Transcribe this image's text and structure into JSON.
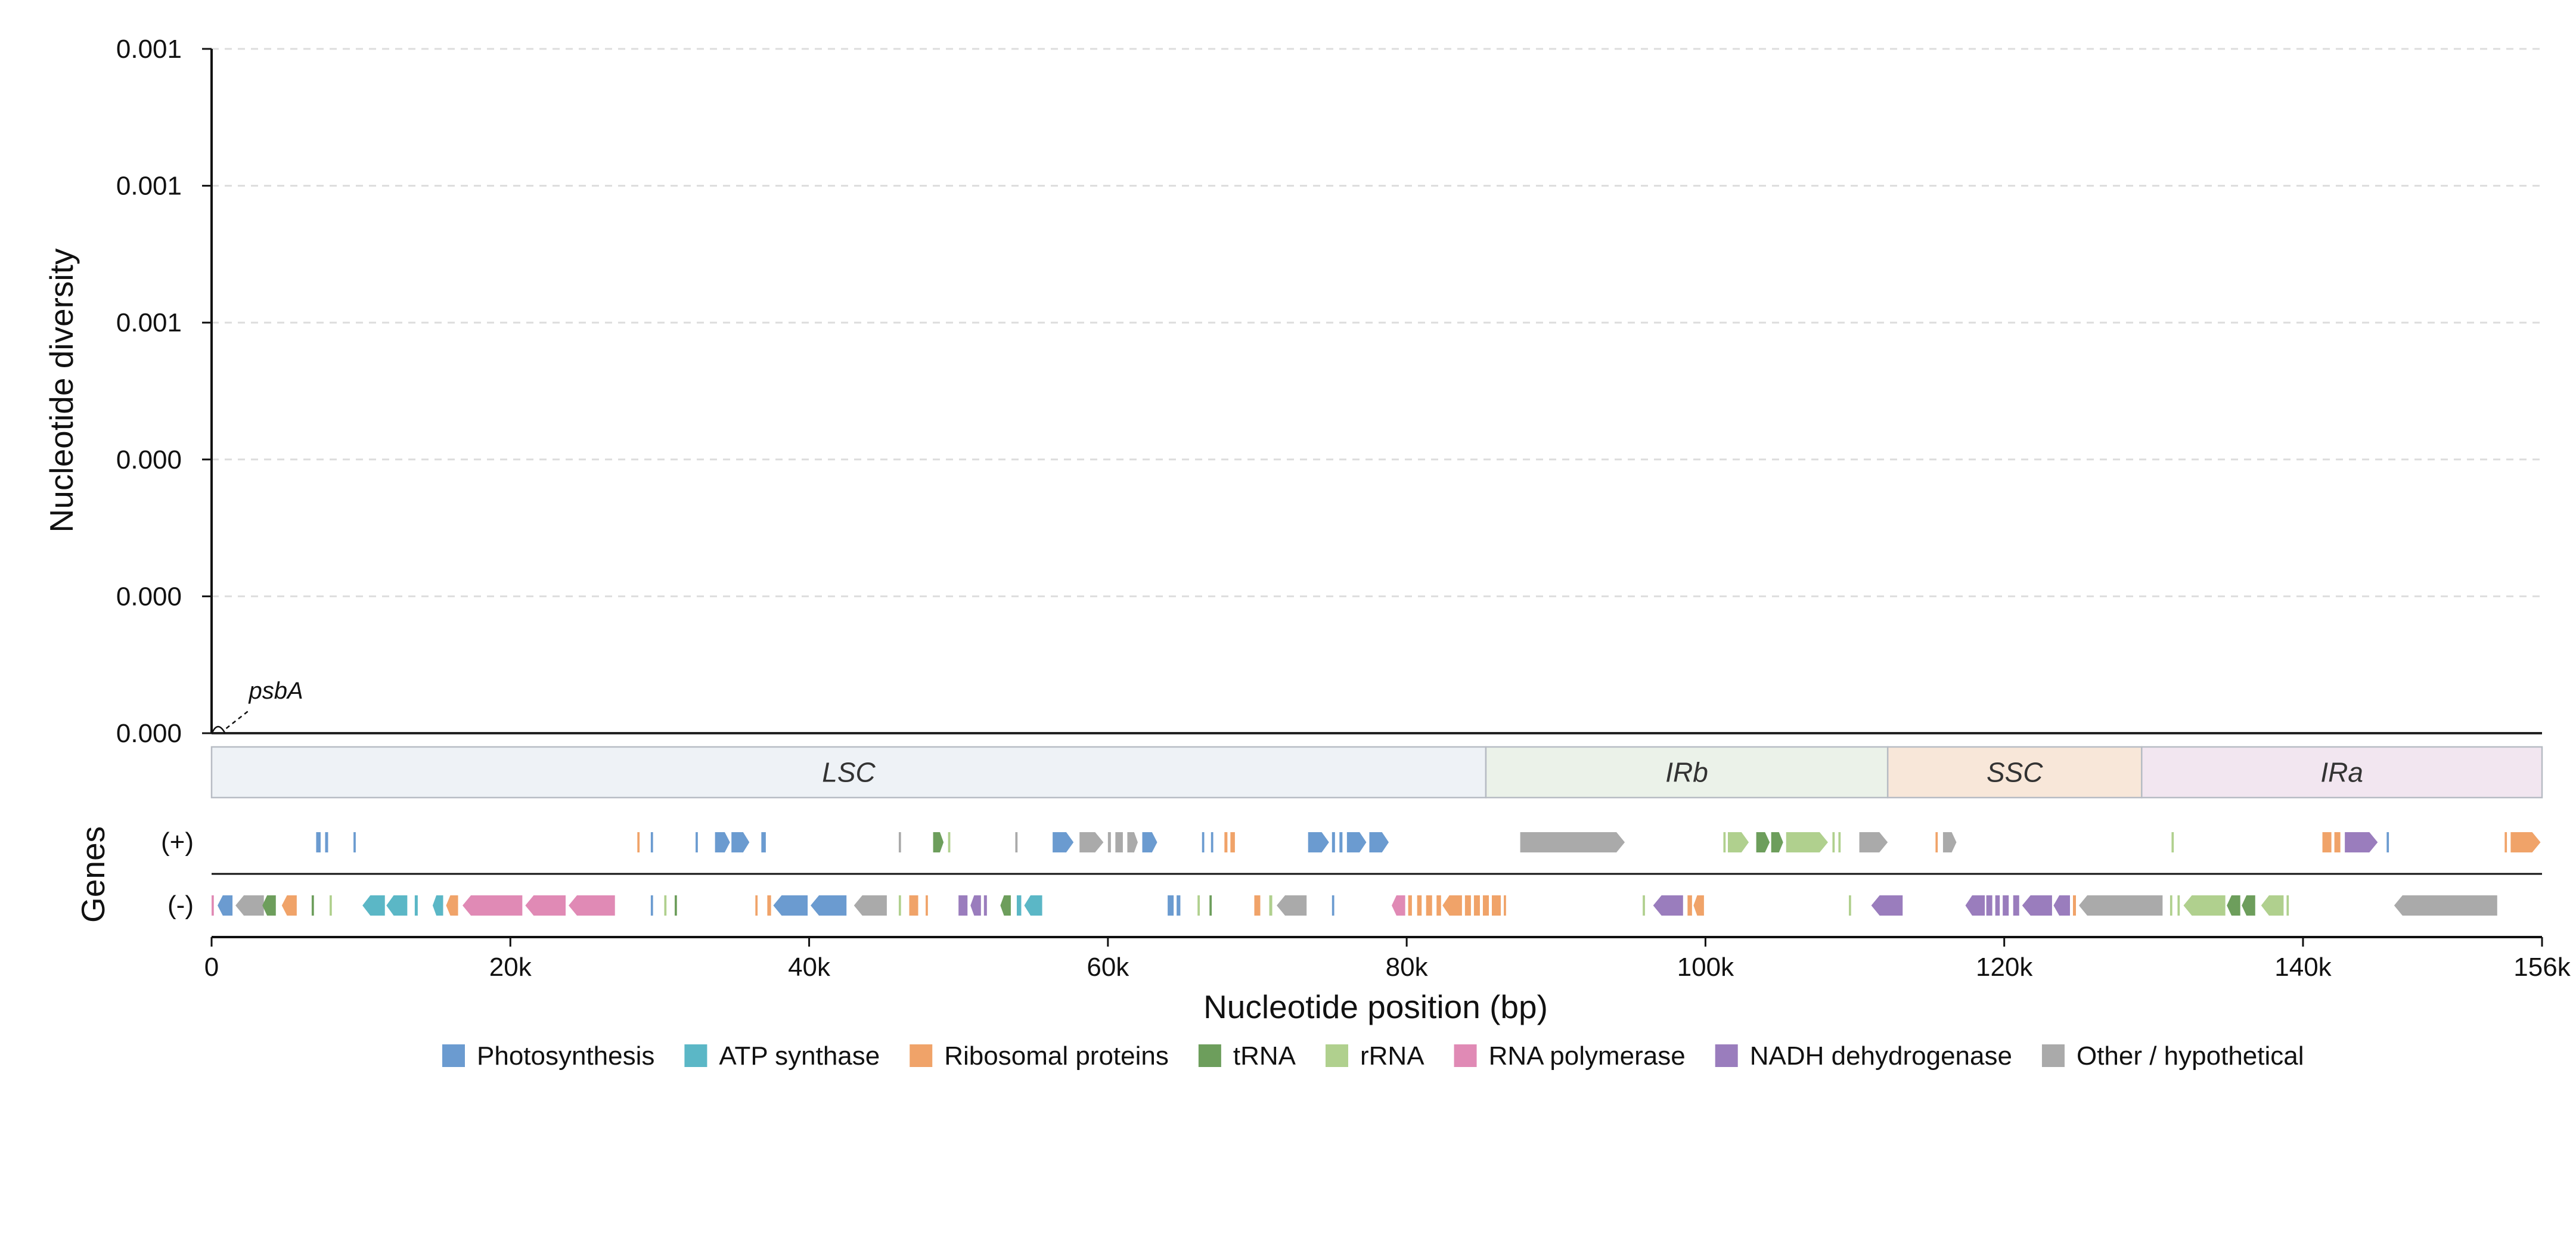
{
  "chart_data": {
    "type": "line",
    "ylabel": "Nucleotide diversity",
    "xlabel": "Nucleotide position (bp)",
    "genes_label": "Genes",
    "xlim": [
      0,
      156000
    ],
    "y_tick_labels": [
      "0.000",
      "0.000",
      "0.000",
      "0.001",
      "0.001",
      "0.001"
    ],
    "x_ticks": [
      {
        "value": 0,
        "label": "0"
      },
      {
        "value": 20000,
        "label": "20k"
      },
      {
        "value": 40000,
        "label": "40k"
      },
      {
        "value": 60000,
        "label": "60k"
      },
      {
        "value": 80000,
        "label": "80k"
      },
      {
        "value": 100000,
        "label": "100k"
      },
      {
        "value": 120000,
        "label": "120k"
      },
      {
        "value": 140000,
        "label": "140k"
      },
      {
        "value": 156000,
        "label": "156k"
      }
    ],
    "grid": "horizontal dashed",
    "series": [
      {
        "x": [
          0,
          156000
        ],
        "y": [
          0,
          0
        ],
        "color": "#222222"
      }
    ],
    "annotations": [
      {
        "text": "psbA",
        "x": 500,
        "y": 0
      }
    ],
    "regions": [
      {
        "name": "LSC",
        "start": 0,
        "end": 85300,
        "color": "#eef2f6"
      },
      {
        "name": "IRb",
        "start": 85300,
        "end": 112200,
        "color": "#ebf2e9"
      },
      {
        "name": "SSC",
        "start": 112200,
        "end": 129200,
        "color": "#f8e7d9"
      },
      {
        "name": "IRa",
        "start": 129200,
        "end": 156000,
        "color": "#f2e6f0"
      }
    ],
    "strands": [
      {
        "label": "(+)",
        "sign": "+"
      },
      {
        "label": "(-)",
        "sign": "-"
      }
    ],
    "gene_categories": [
      {
        "key": "photo",
        "name": "Photosynthesis",
        "color": "#6b9bd0"
      },
      {
        "key": "atp",
        "name": "ATP synthase",
        "color": "#5bb7c6"
      },
      {
        "key": "ribo",
        "name": "Ribosomal proteins",
        "color": "#f0a369"
      },
      {
        "key": "trna",
        "name": "tRNA",
        "color": "#6d9e5c"
      },
      {
        "key": "rrna",
        "name": "rRNA",
        "color": "#b0d08e"
      },
      {
        "key": "rnap",
        "name": "RNA polymerase",
        "color": "#e08ab5"
      },
      {
        "key": "ndh",
        "name": "NADH dehydrogenase",
        "color": "#9a7dbd"
      },
      {
        "key": "other",
        "name": "Other / hypothetical",
        "color": "#aaaaaa"
      }
    ],
    "genes_plus": [
      {
        "s": 7000,
        "e": 7300,
        "c": "photo"
      },
      {
        "s": 7600,
        "e": 7800,
        "c": "photo"
      },
      {
        "s": 9500,
        "e": 9650,
        "c": "photo"
      },
      {
        "s": 28500,
        "e": 28650,
        "c": "ribo"
      },
      {
        "s": 29400,
        "e": 29550,
        "c": "photo"
      },
      {
        "s": 32400,
        "e": 32550,
        "c": "photo"
      },
      {
        "s": 33700,
        "e": 34700,
        "c": "photo"
      },
      {
        "s": 34800,
        "e": 36000,
        "c": "photo"
      },
      {
        "s": 36800,
        "e": 37100,
        "c": "photo"
      },
      {
        "s": 46000,
        "e": 46150,
        "c": "other"
      },
      {
        "s": 48300,
        "e": 49000,
        "c": "trna"
      },
      {
        "s": 49300,
        "e": 49450,
        "c": "rrna"
      },
      {
        "s": 53800,
        "e": 53950,
        "c": "other"
      },
      {
        "s": 56300,
        "e": 57700,
        "c": "photo"
      },
      {
        "s": 58100,
        "e": 59700,
        "c": "other"
      },
      {
        "s": 60000,
        "e": 60200,
        "c": "other"
      },
      {
        "s": 60500,
        "e": 61000,
        "c": "other"
      },
      {
        "s": 61300,
        "e": 62000,
        "c": "other"
      },
      {
        "s": 62300,
        "e": 63300,
        "c": "photo"
      },
      {
        "s": 66300,
        "e": 66450,
        "c": "photo"
      },
      {
        "s": 66900,
        "e": 67050,
        "c": "photo"
      },
      {
        "s": 67800,
        "e": 68000,
        "c": "ribo"
      },
      {
        "s": 68200,
        "e": 68500,
        "c": "ribo"
      },
      {
        "s": 73400,
        "e": 74800,
        "c": "photo"
      },
      {
        "s": 75000,
        "e": 75200,
        "c": "photo"
      },
      {
        "s": 75500,
        "e": 75700,
        "c": "photo"
      },
      {
        "s": 76000,
        "e": 77300,
        "c": "photo"
      },
      {
        "s": 77500,
        "e": 78800,
        "c": "photo"
      },
      {
        "s": 87600,
        "e": 94600,
        "c": "other"
      },
      {
        "s": 101200,
        "e": 101350,
        "c": "rrna"
      },
      {
        "s": 101500,
        "e": 102900,
        "c": "rrna"
      },
      {
        "s": 103400,
        "e": 104300,
        "c": "trna"
      },
      {
        "s": 104400,
        "e": 105200,
        "c": "trna"
      },
      {
        "s": 105400,
        "e": 108200,
        "c": "rrna"
      },
      {
        "s": 108500,
        "e": 108650,
        "c": "rrna"
      },
      {
        "s": 108900,
        "e": 109050,
        "c": "rrna"
      },
      {
        "s": 110300,
        "e": 112200,
        "c": "other"
      },
      {
        "s": 115400,
        "e": 115550,
        "c": "ribo"
      },
      {
        "s": 115900,
        "e": 116800,
        "c": "other"
      },
      {
        "s": 131200,
        "e": 131350,
        "c": "rrna"
      },
      {
        "s": 141300,
        "e": 141900,
        "c": "ribo"
      },
      {
        "s": 142100,
        "e": 142500,
        "c": "ribo"
      },
      {
        "s": 142800,
        "e": 145000,
        "c": "ndh"
      },
      {
        "s": 145600,
        "e": 145750,
        "c": "photo"
      },
      {
        "s": 153500,
        "e": 153650,
        "c": "ribo"
      },
      {
        "s": 153900,
        "e": 155900,
        "c": "ribo"
      }
    ],
    "genes_minus": [
      {
        "s": 0,
        "e": 150,
        "c": "rnap"
      },
      {
        "s": 400,
        "e": 1400,
        "c": "photo"
      },
      {
        "s": 1600,
        "e": 3500,
        "c": "other"
      },
      {
        "s": 3400,
        "e": 4300,
        "c": "trna"
      },
      {
        "s": 4700,
        "e": 5700,
        "c": "ribo"
      },
      {
        "s": 6700,
        "e": 6850,
        "c": "trna"
      },
      {
        "s": 7900,
        "e": 8050,
        "c": "rrna"
      },
      {
        "s": 10100,
        "e": 11600,
        "c": "atp"
      },
      {
        "s": 11700,
        "e": 13100,
        "c": "atp"
      },
      {
        "s": 13600,
        "e": 13800,
        "c": "atp"
      },
      {
        "s": 14800,
        "e": 15500,
        "c": "atp"
      },
      {
        "s": 15700,
        "e": 16500,
        "c": "ribo"
      },
      {
        "s": 16800,
        "e": 20800,
        "c": "rnap"
      },
      {
        "s": 21000,
        "e": 23700,
        "c": "rnap"
      },
      {
        "s": 23900,
        "e": 27000,
        "c": "rnap"
      },
      {
        "s": 29400,
        "e": 29550,
        "c": "photo"
      },
      {
        "s": 30300,
        "e": 30450,
        "c": "rrna"
      },
      {
        "s": 31000,
        "e": 31150,
        "c": "trna"
      },
      {
        "s": 36400,
        "e": 36550,
        "c": "ribo"
      },
      {
        "s": 37200,
        "e": 37450,
        "c": "ribo"
      },
      {
        "s": 37600,
        "e": 39900,
        "c": "photo"
      },
      {
        "s": 40100,
        "e": 42500,
        "c": "photo"
      },
      {
        "s": 43000,
        "e": 45200,
        "c": "other"
      },
      {
        "s": 46000,
        "e": 46150,
        "c": "rrna"
      },
      {
        "s": 46700,
        "e": 47300,
        "c": "ribo"
      },
      {
        "s": 47800,
        "e": 47950,
        "c": "ribo"
      },
      {
        "s": 50000,
        "e": 50600,
        "c": "ndh"
      },
      {
        "s": 50800,
        "e": 51500,
        "c": "ndh"
      },
      {
        "s": 51700,
        "e": 51900,
        "c": "ndh"
      },
      {
        "s": 52800,
        "e": 53500,
        "c": "trna"
      },
      {
        "s": 53900,
        "e": 54200,
        "c": "atp"
      },
      {
        "s": 54400,
        "e": 55600,
        "c": "atp"
      },
      {
        "s": 64000,
        "e": 64400,
        "c": "photo"
      },
      {
        "s": 64600,
        "e": 64850,
        "c": "photo"
      },
      {
        "s": 66000,
        "e": 66150,
        "c": "rrna"
      },
      {
        "s": 66800,
        "e": 66950,
        "c": "trna"
      },
      {
        "s": 69800,
        "e": 70200,
        "c": "ribo"
      },
      {
        "s": 70800,
        "e": 71000,
        "c": "rrna"
      },
      {
        "s": 71300,
        "e": 73300,
        "c": "other"
      },
      {
        "s": 75000,
        "e": 75150,
        "c": "photo"
      },
      {
        "s": 79000,
        "e": 79900,
        "c": "rnap"
      },
      {
        "s": 80100,
        "e": 80350,
        "c": "ribo"
      },
      {
        "s": 80700,
        "e": 81000,
        "c": "ribo"
      },
      {
        "s": 81300,
        "e": 81700,
        "c": "ribo"
      },
      {
        "s": 82000,
        "e": 82300,
        "c": "ribo"
      },
      {
        "s": 82400,
        "e": 83700,
        "c": "ribo"
      },
      {
        "s": 83900,
        "e": 84300,
        "c": "ribo"
      },
      {
        "s": 84500,
        "e": 84900,
        "c": "ribo"
      },
      {
        "s": 85100,
        "e": 85500,
        "c": "ribo"
      },
      {
        "s": 85700,
        "e": 86300,
        "c": "ribo"
      },
      {
        "s": 86500,
        "e": 86650,
        "c": "ribo"
      },
      {
        "s": 95800,
        "e": 95950,
        "c": "rrna"
      },
      {
        "s": 96500,
        "e": 98500,
        "c": "ndh"
      },
      {
        "s": 98800,
        "e": 99100,
        "c": "ribo"
      },
      {
        "s": 99200,
        "e": 99900,
        "c": "ribo"
      },
      {
        "s": 109600,
        "e": 109750,
        "c": "rrna"
      },
      {
        "s": 111100,
        "e": 113200,
        "c": "ndh"
      },
      {
        "s": 117400,
        "e": 118700,
        "c": "ndh"
      },
      {
        "s": 118800,
        "e": 119200,
        "c": "ndh"
      },
      {
        "s": 119400,
        "e": 119700,
        "c": "ndh"
      },
      {
        "s": 119900,
        "e": 120300,
        "c": "ndh"
      },
      {
        "s": 120600,
        "e": 121000,
        "c": "ndh"
      },
      {
        "s": 121200,
        "e": 123200,
        "c": "ndh"
      },
      {
        "s": 123300,
        "e": 124400,
        "c": "ndh"
      },
      {
        "s": 124600,
        "e": 124800,
        "c": "ribo"
      },
      {
        "s": 125000,
        "e": 130600,
        "c": "other"
      },
      {
        "s": 131100,
        "e": 131250,
        "c": "rrna"
      },
      {
        "s": 131600,
        "e": 131750,
        "c": "rrna"
      },
      {
        "s": 132000,
        "e": 134800,
        "c": "rrna"
      },
      {
        "s": 134900,
        "e": 135800,
        "c": "trna"
      },
      {
        "s": 135900,
        "e": 136800,
        "c": "trna"
      },
      {
        "s": 137200,
        "e": 138700,
        "c": "rrna"
      },
      {
        "s": 138900,
        "e": 139050,
        "c": "rrna"
      },
      {
        "s": 146100,
        "e": 153000,
        "c": "other"
      }
    ]
  }
}
